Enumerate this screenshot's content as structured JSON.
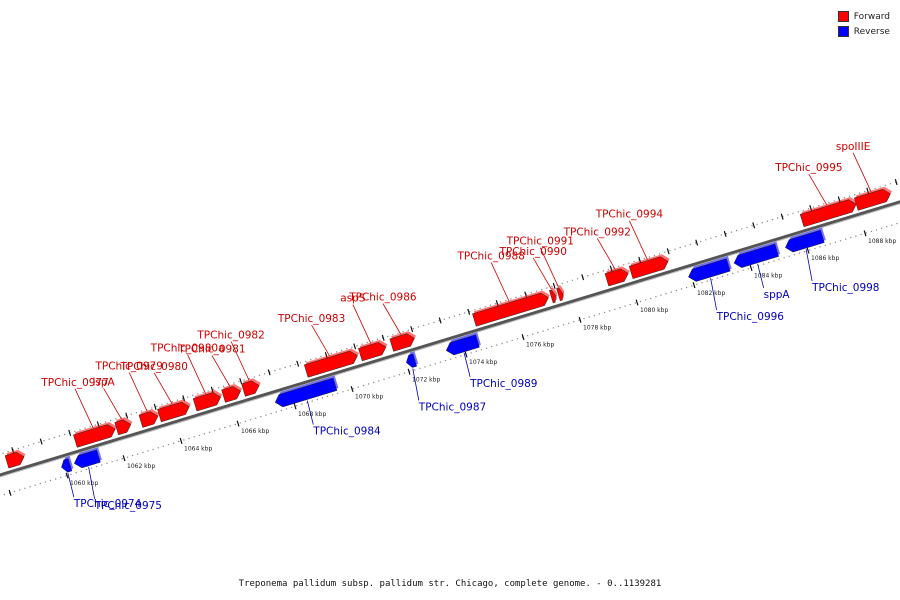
{
  "caption": "Treponema pallidum subsp. pallidum str. Chicago, complete genome. - 0..1139281",
  "legend": [
    {
      "label": "Forward",
      "color": "#ff0000"
    },
    {
      "label": "Reverse",
      "color": "#0000ff"
    }
  ],
  "colors": {
    "forward": "#ff0000",
    "reverse": "#0000ff",
    "forward_label": "#cc0000",
    "reverse_label": "#0000bb"
  },
  "ticks": [
    {
      "label": "1060 kbp",
      "kbp": 1060
    },
    {
      "label": "1062 kbp",
      "kbp": 1062
    },
    {
      "label": "1064 kbp",
      "kbp": 1064
    },
    {
      "label": "1066 kbp",
      "kbp": 1066
    },
    {
      "label": "1068 kbp",
      "kbp": 1068
    },
    {
      "label": "1070 kbp",
      "kbp": 1070
    },
    {
      "label": "1072 kbp",
      "kbp": 1072
    },
    {
      "label": "1074 kbp",
      "kbp": 1074
    },
    {
      "label": "1076 kbp",
      "kbp": 1076
    },
    {
      "label": "1078 kbp",
      "kbp": 1078
    },
    {
      "label": "1080 kbp",
      "kbp": 1080
    },
    {
      "label": "1082 kbp",
      "kbp": 1082
    },
    {
      "label": "1084 kbp",
      "kbp": 1084
    },
    {
      "label": "1086 kbp",
      "kbp": 1086
    },
    {
      "label": "1088 kbp",
      "kbp": 1088
    }
  ],
  "forward_features": [
    {
      "label": "",
      "start": 1058.2,
      "end": 1058.8
    },
    {
      "label": "TPChic_0977",
      "start": 1060.6,
      "end": 1062.0
    },
    {
      "label": "lspA",
      "start": 1062.05,
      "end": 1062.55
    },
    {
      "label": "TPChic_0979",
      "start": 1062.9,
      "end": 1063.5
    },
    {
      "label": "TPChic_0980",
      "start": 1063.55,
      "end": 1064.6
    },
    {
      "label": "TPChic_0980a",
      "start": 1064.8,
      "end": 1065.7
    },
    {
      "label": "TPChic_0981",
      "start": 1065.8,
      "end": 1066.4
    },
    {
      "label": "TPChic_0982",
      "start": 1066.5,
      "end": 1067.05
    },
    {
      "label": "TPChic_0983",
      "start": 1068.7,
      "end": 1070.5
    },
    {
      "label": "aspS",
      "start": 1070.6,
      "end": 1071.5
    },
    {
      "label": "TPChic_0986",
      "start": 1071.7,
      "end": 1072.5
    },
    {
      "label": "TPChic_0988",
      "start": 1074.6,
      "end": 1077.2
    },
    {
      "label": "TPChic_0990",
      "start": 1077.3,
      "end": 1077.45
    },
    {
      "label": "TPChic_0991",
      "start": 1077.55,
      "end": 1077.7
    },
    {
      "label": "TPChic_0992",
      "start": 1079.25,
      "end": 1080.0
    },
    {
      "label": "TPChic_0994",
      "start": 1080.1,
      "end": 1081.4
    },
    {
      "label": "TPChic_0995",
      "start": 1086.1,
      "end": 1088.0
    },
    {
      "label": "spoIIIE",
      "start": 1088.0,
      "end": 1089.2
    }
  ],
  "reverse_features": [
    {
      "label": "TPChic_0974",
      "start": 1059.9,
      "end": 1060.2
    },
    {
      "label": "TPChic_0975",
      "start": 1060.35,
      "end": 1061.2
    },
    {
      "label": "TPChic_0984",
      "start": 1067.4,
      "end": 1069.5
    },
    {
      "label": "TPChic_0987",
      "start": 1072.0,
      "end": 1072.3
    },
    {
      "label": "TPChic_0989",
      "start": 1073.4,
      "end": 1074.5
    },
    {
      "label": "TPChic_0996",
      "start": 1081.9,
      "end": 1083.3
    },
    {
      "label": "sppA",
      "start": 1083.5,
      "end": 1085.0
    },
    {
      "label": "TPChic_0998",
      "start": 1085.3,
      "end": 1086.6
    }
  ]
}
